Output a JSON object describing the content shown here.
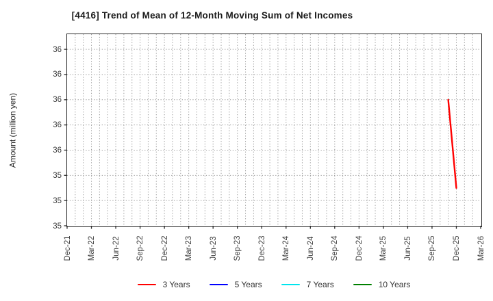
{
  "chart_data": {
    "type": "line",
    "title": "[4416]  Trend of Mean of 12-Month Moving Sum of Net Incomes",
    "ylabel": "Amount (million yen)",
    "x_axis": {
      "tick_labels": [
        "Dec-21",
        "Mar-22",
        "Jun-22",
        "Sep-22",
        "Dec-22",
        "Mar-23",
        "Jun-23",
        "Sep-23",
        "Dec-23",
        "Mar-24",
        "Jun-24",
        "Sep-24",
        "Dec-24",
        "Mar-25",
        "Jun-25",
        "Sep-25",
        "Dec-25",
        "Mar-26"
      ],
      "months_per_tick": 3,
      "total_months": 51
    },
    "y_axis": {
      "ylim": [
        35.0,
        36.52
      ],
      "ticks": [
        {
          "value": 35.0,
          "label": "35"
        },
        {
          "value": 35.2,
          "label": "35"
        },
        {
          "value": 35.4,
          "label": "35"
        },
        {
          "value": 35.6,
          "label": "36"
        },
        {
          "value": 35.8,
          "label": "36"
        },
        {
          "value": 36.0,
          "label": "36"
        },
        {
          "value": 36.2,
          "label": "36"
        },
        {
          "value": 36.4,
          "label": "36"
        }
      ]
    },
    "grid": {
      "vertical": "monthly",
      "horizontal": "major-y-ticks",
      "line_style": "dotted",
      "color": "#9a9a9a"
    },
    "frame_color": "#2b2b2b",
    "series": [
      {
        "name": "3 Years",
        "color": "#ff0000",
        "points": [
          {
            "month_index": 47,
            "period": "Nov-25",
            "value": 36.0
          },
          {
            "month_index": 48,
            "period": "Dec-25",
            "value": 35.3
          }
        ]
      },
      {
        "name": "5 Years",
        "color": "#0000ff",
        "points": []
      },
      {
        "name": "7 Years",
        "color": "#00e5ee",
        "points": []
      },
      {
        "name": "10 Years",
        "color": "#008000",
        "points": []
      }
    ],
    "legend": {
      "position": "bottom",
      "entries": [
        "3 Years",
        "5 Years",
        "7 Years",
        "10 Years"
      ]
    }
  }
}
